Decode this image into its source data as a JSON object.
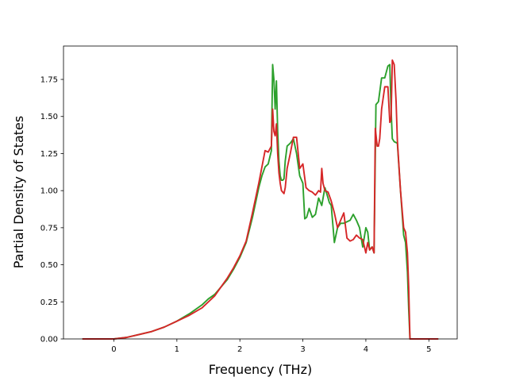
{
  "chart_data": {
    "type": "line",
    "title": "",
    "xlabel": "Frequency (THz)",
    "ylabel": "Partial Density of States",
    "xlim": [
      -0.8,
      5.45
    ],
    "ylim": [
      0.0,
      1.975
    ],
    "xticks": [
      0,
      1,
      2,
      3,
      4,
      5
    ],
    "xtick_labels": [
      "0",
      "1",
      "2",
      "3",
      "4",
      "5"
    ],
    "yticks": [
      0.0,
      0.25,
      0.5,
      0.75,
      1.0,
      1.25,
      1.5,
      1.75
    ],
    "ytick_labels": [
      "0.00",
      "0.25",
      "0.50",
      "0.75",
      "1.00",
      "1.25",
      "1.50",
      "1.75"
    ],
    "grid": false,
    "legend": false,
    "series": [
      {
        "color": "#2ca02c",
        "x": [
          -0.5,
          -0.2,
          0.0,
          0.2,
          0.4,
          0.6,
          0.8,
          1.0,
          1.2,
          1.4,
          1.5,
          1.6,
          1.7,
          1.8,
          1.9,
          2.0,
          2.1,
          2.2,
          2.25,
          2.3,
          2.35,
          2.4,
          2.45,
          2.5,
          2.52,
          2.54,
          2.56,
          2.58,
          2.6,
          2.62,
          2.64,
          2.66,
          2.68,
          2.7,
          2.72,
          2.75,
          2.8,
          2.85,
          2.9,
          2.95,
          3.0,
          3.03,
          3.06,
          3.1,
          3.15,
          3.2,
          3.25,
          3.3,
          3.35,
          3.4,
          3.42,
          3.45,
          3.5,
          3.55,
          3.6,
          3.65,
          3.7,
          3.75,
          3.8,
          3.85,
          3.9,
          3.95,
          4.0,
          4.03,
          4.06,
          4.1,
          4.13,
          4.16,
          4.2,
          4.25,
          4.3,
          4.35,
          4.38,
          4.4,
          4.42,
          4.45,
          4.5,
          4.55,
          4.6,
          4.63,
          4.66,
          4.68,
          4.7,
          4.72,
          4.8,
          5.0,
          5.15
        ],
        "y": [
          0.0,
          0.0,
          0.0,
          0.01,
          0.03,
          0.05,
          0.08,
          0.12,
          0.17,
          0.23,
          0.27,
          0.3,
          0.35,
          0.4,
          0.47,
          0.55,
          0.65,
          0.82,
          0.92,
          1.02,
          1.1,
          1.16,
          1.18,
          1.27,
          1.85,
          1.75,
          1.55,
          1.74,
          1.4,
          1.2,
          1.1,
          1.07,
          1.07,
          1.08,
          1.2,
          1.3,
          1.32,
          1.35,
          1.25,
          1.1,
          1.05,
          0.81,
          0.82,
          0.88,
          0.82,
          0.84,
          0.95,
          0.9,
          1.02,
          0.95,
          0.92,
          0.9,
          0.65,
          0.75,
          0.78,
          0.78,
          0.79,
          0.8,
          0.84,
          0.8,
          0.75,
          0.62,
          0.75,
          0.72,
          0.6,
          0.62,
          0.58,
          1.58,
          1.6,
          1.76,
          1.76,
          1.84,
          1.85,
          1.55,
          1.35,
          1.33,
          1.32,
          1.0,
          0.7,
          0.65,
          0.45,
          0.2,
          0.0,
          0.0,
          0.0,
          0.0,
          0.0
        ]
      },
      {
        "color": "#d62728",
        "x": [
          -0.5,
          -0.2,
          0.0,
          0.2,
          0.4,
          0.6,
          0.8,
          1.0,
          1.2,
          1.4,
          1.5,
          1.6,
          1.7,
          1.8,
          1.9,
          2.0,
          2.1,
          2.2,
          2.25,
          2.3,
          2.35,
          2.4,
          2.45,
          2.5,
          2.52,
          2.54,
          2.56,
          2.58,
          2.6,
          2.62,
          2.64,
          2.66,
          2.7,
          2.72,
          2.75,
          2.8,
          2.85,
          2.9,
          2.95,
          3.0,
          3.05,
          3.1,
          3.15,
          3.2,
          3.25,
          3.28,
          3.3,
          3.32,
          3.35,
          3.4,
          3.45,
          3.5,
          3.55,
          3.6,
          3.65,
          3.7,
          3.75,
          3.8,
          3.85,
          3.9,
          3.95,
          4.0,
          4.03,
          4.06,
          4.1,
          4.13,
          4.15,
          4.18,
          4.2,
          4.22,
          4.25,
          4.3,
          4.35,
          4.38,
          4.4,
          4.42,
          4.45,
          4.48,
          4.5,
          4.55,
          4.6,
          4.63,
          4.66,
          4.68,
          4.7,
          4.72,
          4.8,
          5.0,
          5.15
        ],
        "y": [
          0.0,
          0.0,
          0.0,
          0.01,
          0.03,
          0.05,
          0.08,
          0.12,
          0.16,
          0.21,
          0.25,
          0.29,
          0.35,
          0.41,
          0.48,
          0.56,
          0.66,
          0.85,
          0.95,
          1.05,
          1.16,
          1.27,
          1.26,
          1.3,
          1.55,
          1.4,
          1.37,
          1.45,
          1.25,
          1.12,
          1.05,
          1.0,
          0.98,
          1.02,
          1.15,
          1.25,
          1.36,
          1.36,
          1.15,
          1.18,
          1.02,
          1.0,
          0.99,
          0.97,
          1.0,
          0.99,
          1.15,
          1.05,
          1.0,
          0.99,
          0.93,
          0.85,
          0.75,
          0.8,
          0.85,
          0.68,
          0.66,
          0.67,
          0.7,
          0.68,
          0.67,
          0.58,
          0.65,
          0.6,
          0.62,
          0.58,
          1.42,
          1.3,
          1.3,
          1.35,
          1.55,
          1.7,
          1.7,
          1.46,
          1.48,
          1.88,
          1.85,
          1.6,
          1.34,
          1.0,
          0.75,
          0.72,
          0.58,
          0.35,
          0.0,
          0.0,
          0.0,
          0.0,
          0.0
        ]
      }
    ]
  }
}
